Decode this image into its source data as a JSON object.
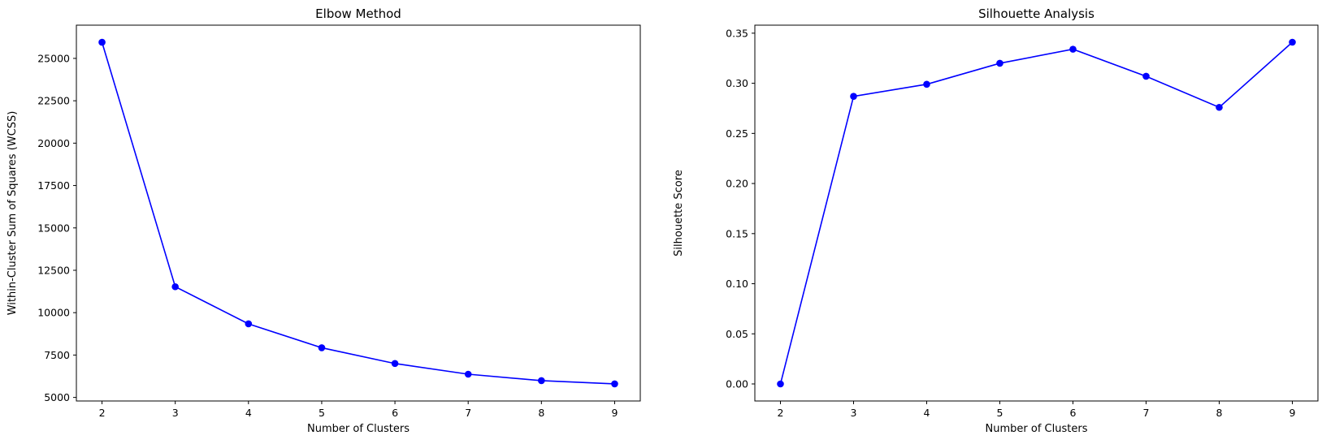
{
  "chart_data": [
    {
      "type": "line",
      "title": "Elbow Method",
      "xlabel": "Number of Clusters",
      "ylabel": "Within-Cluster Sum of Squares (WCSS)",
      "x": [
        2,
        3,
        4,
        5,
        6,
        7,
        8,
        9
      ],
      "series": [
        {
          "values": [
            25950,
            11530,
            9340,
            7930,
            7000,
            6370,
            5990,
            5800
          ]
        }
      ],
      "xticks": [
        2,
        3,
        4,
        5,
        6,
        7,
        8,
        9
      ],
      "yticks": [
        5000,
        7500,
        10000,
        12500,
        15000,
        17500,
        20000,
        22500,
        25000
      ],
      "ytick_labels": [
        "5000",
        "7500",
        "10000",
        "12500",
        "15000",
        "17500",
        "20000",
        "22500",
        "25000"
      ],
      "xlim": [
        1.65,
        9.35
      ],
      "ylim": [
        4790,
        26960
      ],
      "grid": false,
      "marker": "circle",
      "color": "#0000ff"
    },
    {
      "type": "line",
      "title": "Silhouette Analysis",
      "xlabel": "Number of Clusters",
      "ylabel": "Silhouette Score",
      "x": [
        2,
        3,
        4,
        5,
        6,
        7,
        8,
        9
      ],
      "series": [
        {
          "values": [
            0.0,
            0.287,
            0.299,
            0.32,
            0.334,
            0.307,
            0.276,
            0.341
          ]
        }
      ],
      "xticks": [
        2,
        3,
        4,
        5,
        6,
        7,
        8,
        9
      ],
      "yticks": [
        0.0,
        0.05,
        0.1,
        0.15,
        0.2,
        0.25,
        0.3,
        0.35
      ],
      "ytick_labels": [
        "0.00",
        "0.05",
        "0.10",
        "0.15",
        "0.20",
        "0.25",
        "0.30",
        "0.35"
      ],
      "xlim": [
        1.65,
        9.35
      ],
      "ylim": [
        -0.017,
        0.358
      ],
      "grid": false,
      "marker": "circle",
      "color": "#0000ff"
    }
  ]
}
